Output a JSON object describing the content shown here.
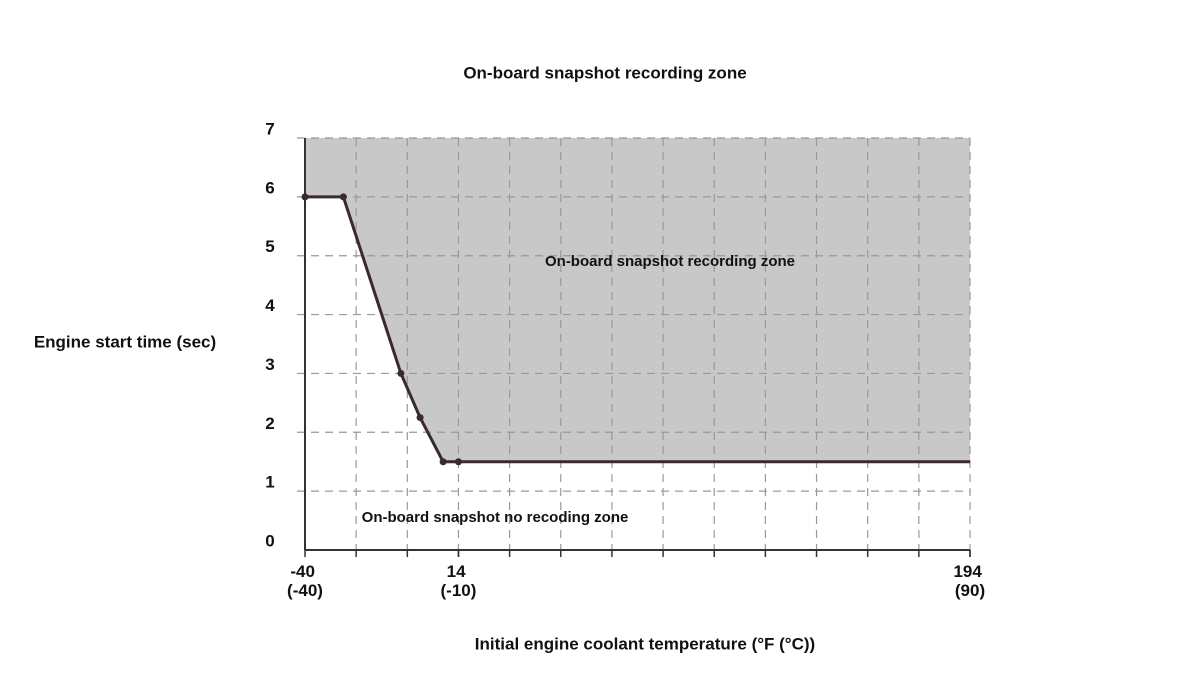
{
  "chart_data": {
    "type": "line",
    "title": "On-board snapshot recording zone",
    "x_label": "Initial engine coolant temperature (°F (°C))",
    "y_label": "Engine start time (sec)",
    "annotations": [
      "On-board snapshot recording zone",
      "On-board snapshot no recoding zone"
    ],
    "x": [
      -40,
      -26.5,
      -6.25,
      0.5,
      8.6,
      14,
      194
    ],
    "series": [
      {
        "values": [
          6,
          6,
          3,
          2.25,
          1.5,
          1.5,
          1.5
        ],
        "color": "#3a2a2a"
      }
    ],
    "zone_color": "#c8c8c8",
    "xlim": [
      -40,
      194
    ],
    "xticks": [
      {
        "value": -40,
        "label": "-40 (-40)"
      },
      {
        "value": 14,
        "label": "14 (-10)"
      },
      {
        "value": 194,
        "label": "194 (90)"
      }
    ],
    "ylim": [
      0,
      7
    ],
    "yticks": [
      0,
      1,
      2,
      3,
      4,
      5,
      6,
      7
    ],
    "grid": true
  }
}
